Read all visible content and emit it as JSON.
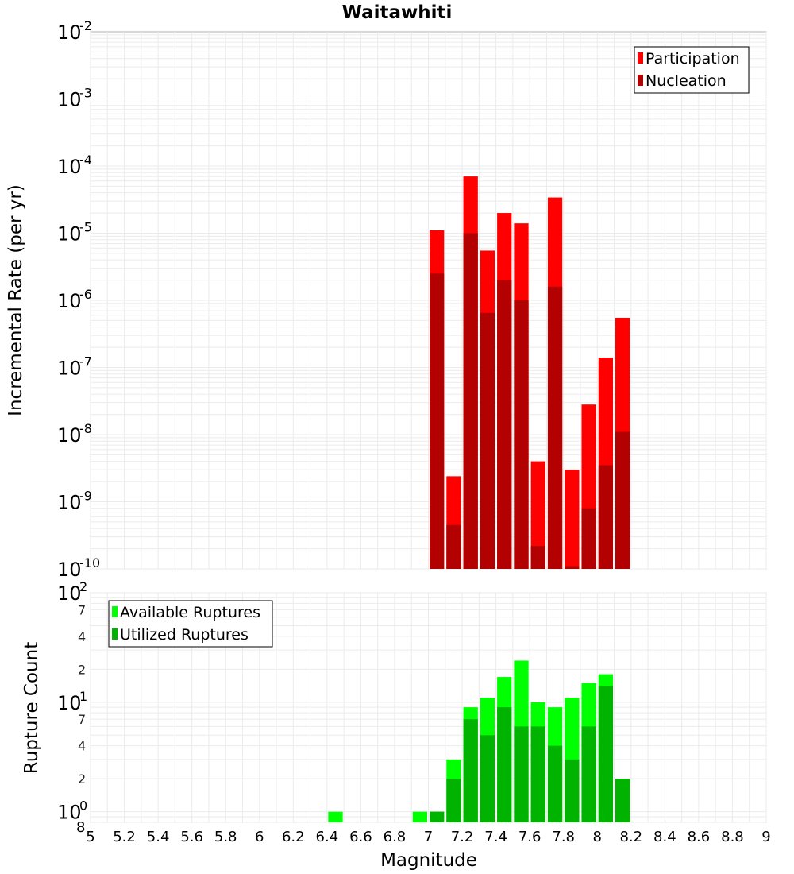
{
  "chart_data": [
    {
      "type": "bar",
      "title": "Waitawhiti",
      "xlabel": "",
      "ylabel": "Incremental Rate (per yr)",
      "yscale": "log",
      "ylim": [
        1e-10,
        0.01
      ],
      "xlim": [
        5,
        9
      ],
      "bin_width": 0.1,
      "grid": true,
      "legend": "top-right",
      "x": [
        7.05,
        7.15,
        7.25,
        7.35,
        7.45,
        7.55,
        7.65,
        7.75,
        7.85,
        7.95,
        8.05,
        8.15
      ],
      "series": [
        {
          "name": "Participation",
          "color": "#ff0000",
          "values": [
            1.1e-05,
            2.4e-09,
            7e-05,
            5.5e-06,
            2e-05,
            1.4e-05,
            4e-09,
            3.4e-05,
            3e-09,
            2.8e-08,
            1.4e-07,
            5.5e-07
          ]
        },
        {
          "name": "Nucleation",
          "color": "#b30000",
          "values": [
            2.5e-06,
            4.5e-10,
            1e-05,
            6.5e-07,
            2e-06,
            1e-06,
            2.2e-10,
            1.6e-06,
            1.1e-10,
            8e-10,
            3.5e-09,
            1.1e-08
          ]
        }
      ]
    },
    {
      "type": "bar",
      "xlabel": "Magnitude",
      "ylabel": "Rupture Count",
      "yscale": "log",
      "ylim": [
        0.8,
        100
      ],
      "xlim": [
        5,
        9
      ],
      "bin_width": 0.1,
      "grid": true,
      "legend": "top-left",
      "x": [
        6.45,
        6.95,
        7.05,
        7.15,
        7.25,
        7.35,
        7.45,
        7.55,
        7.65,
        7.75,
        7.85,
        7.95,
        8.05,
        8.15
      ],
      "series": [
        {
          "name": "Available Ruptures",
          "color": "#00ff00",
          "values": [
            1,
            1,
            1,
            3,
            9,
            11,
            17,
            24,
            10,
            9,
            11,
            15,
            18,
            2
          ]
        },
        {
          "name": "Utilized Ruptures",
          "color": "#00b300",
          "values": [
            0,
            0,
            1,
            2,
            7,
            5,
            9,
            6,
            6,
            4,
            3,
            6,
            14,
            2
          ]
        }
      ]
    }
  ],
  "top_y_ticks": [
    {
      "base": "10",
      "exp": "-2"
    },
    {
      "base": "10",
      "exp": "-3"
    },
    {
      "base": "10",
      "exp": "-4"
    },
    {
      "base": "10",
      "exp": "-5"
    },
    {
      "base": "10",
      "exp": "-6"
    },
    {
      "base": "10",
      "exp": "-7"
    },
    {
      "base": "10",
      "exp": "-8"
    },
    {
      "base": "10",
      "exp": "-9"
    },
    {
      "base": "10",
      "exp": "-10"
    }
  ],
  "bottom_y_ticks": [
    {
      "base": "10",
      "exp": "2"
    },
    {
      "base": "10",
      "exp": "1"
    },
    {
      "base": "10",
      "exp": "0"
    }
  ],
  "bottom_y_minor_ticks": [
    "7",
    "4",
    "2",
    "7",
    "4",
    "2",
    "8"
  ],
  "x_ticks": [
    "5",
    "5.2",
    "5.4",
    "5.6",
    "5.8",
    "6",
    "6.2",
    "6.4",
    "6.6",
    "6.8",
    "7",
    "7.2",
    "7.4",
    "7.6",
    "7.8",
    "8",
    "8.2",
    "8.4",
    "8.6",
    "8.8",
    "9"
  ]
}
